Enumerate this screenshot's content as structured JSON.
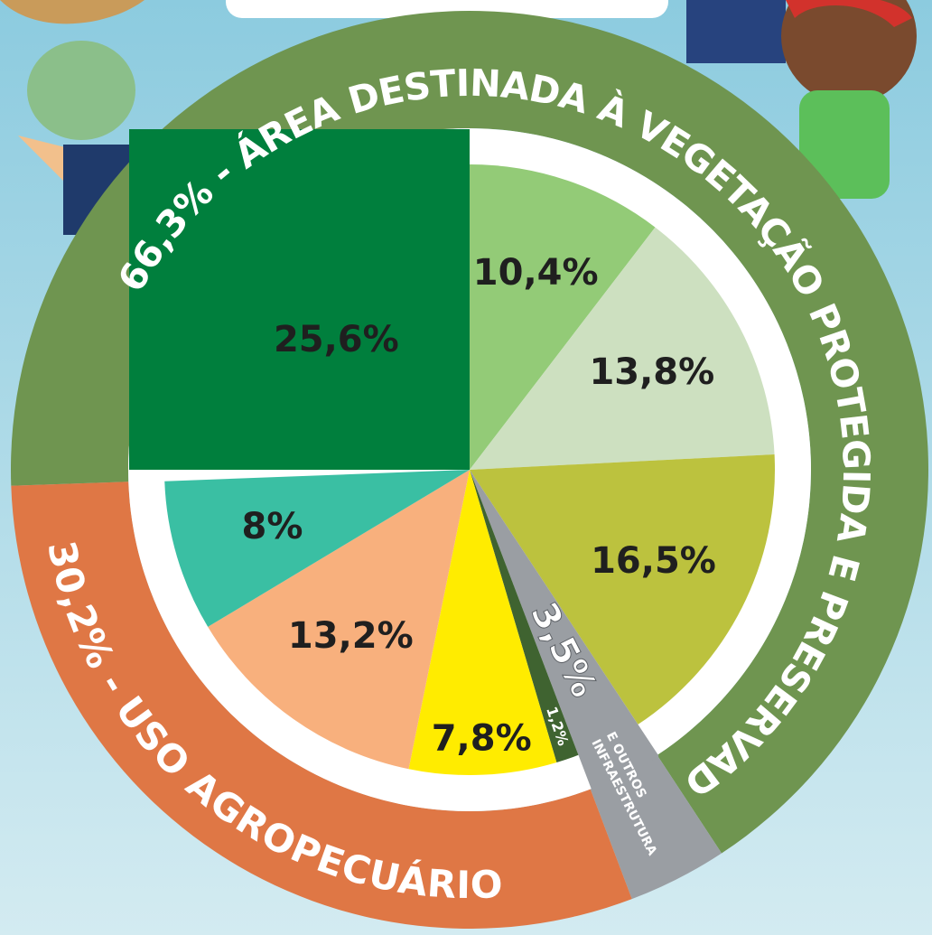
{
  "chart_data": {
    "type": "pie",
    "categories": [
      null,
      null,
      null,
      null,
      null,
      null,
      null,
      null,
      null
    ],
    "values": [
      10.4,
      13.8,
      16.5,
      3.5,
      1.2,
      7.8,
      13.2,
      8,
      25.6
    ],
    "value_labels": [
      "10,4%",
      "13,8%",
      "16,5%",
      null,
      "1,2%",
      "7,8%",
      "13,2%",
      "8%",
      "25,6%"
    ],
    "colors": [
      "#93cb77",
      "#cde0c0",
      "#bcc23e",
      "#9a9ea3",
      "#3f6330",
      "#ffec00",
      "#f8b07d",
      "#3abfa3",
      "#007f3d"
    ],
    "ring": {
      "type": "donut",
      "values": [
        66.3,
        3.5,
        30.2
      ],
      "labels": [
        "66,3% - ÁREA DESTINADA À VEGETAÇÃO PROTEGIDA E PRESERVADA",
        "3,5%",
        "30,2% - USO AGROPECUÁRIO"
      ],
      "captions": [
        null,
        [
          "INFRAESTRUTURA",
          "E OUTROS"
        ],
        null
      ],
      "colors": [
        "#6f9550",
        "#9a9ea3",
        "#df7745"
      ]
    }
  }
}
